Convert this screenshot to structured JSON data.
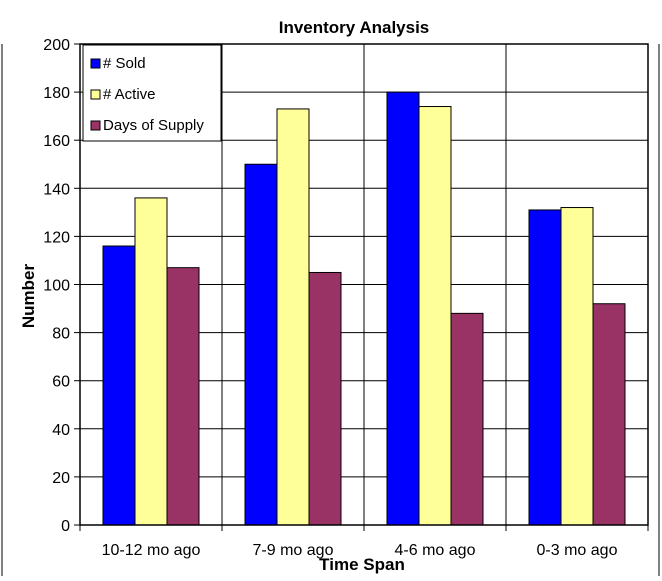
{
  "chart_data": {
    "type": "bar",
    "title": "Inventory Analysis",
    "xlabel": "Time Span",
    "ylabel": "Number",
    "categories": [
      "10-12 mo ago",
      "7-9 mo ago",
      "4-6 mo ago",
      "0-3 mo ago"
    ],
    "series": [
      {
        "name": "# Sold",
        "color": "#0000ff",
        "values": [
          116,
          150,
          180,
          131
        ]
      },
      {
        "name": "# Active",
        "color": "#ffff99",
        "values": [
          136,
          173,
          174,
          132
        ]
      },
      {
        "name": "Days of Supply",
        "color": "#993366",
        "values": [
          107,
          105,
          88,
          92
        ]
      }
    ],
    "ylim": [
      0,
      200
    ],
    "yticks": [
      0,
      20,
      40,
      60,
      80,
      100,
      120,
      140,
      160,
      180,
      200
    ],
    "grid": true,
    "legend": "top-left"
  }
}
